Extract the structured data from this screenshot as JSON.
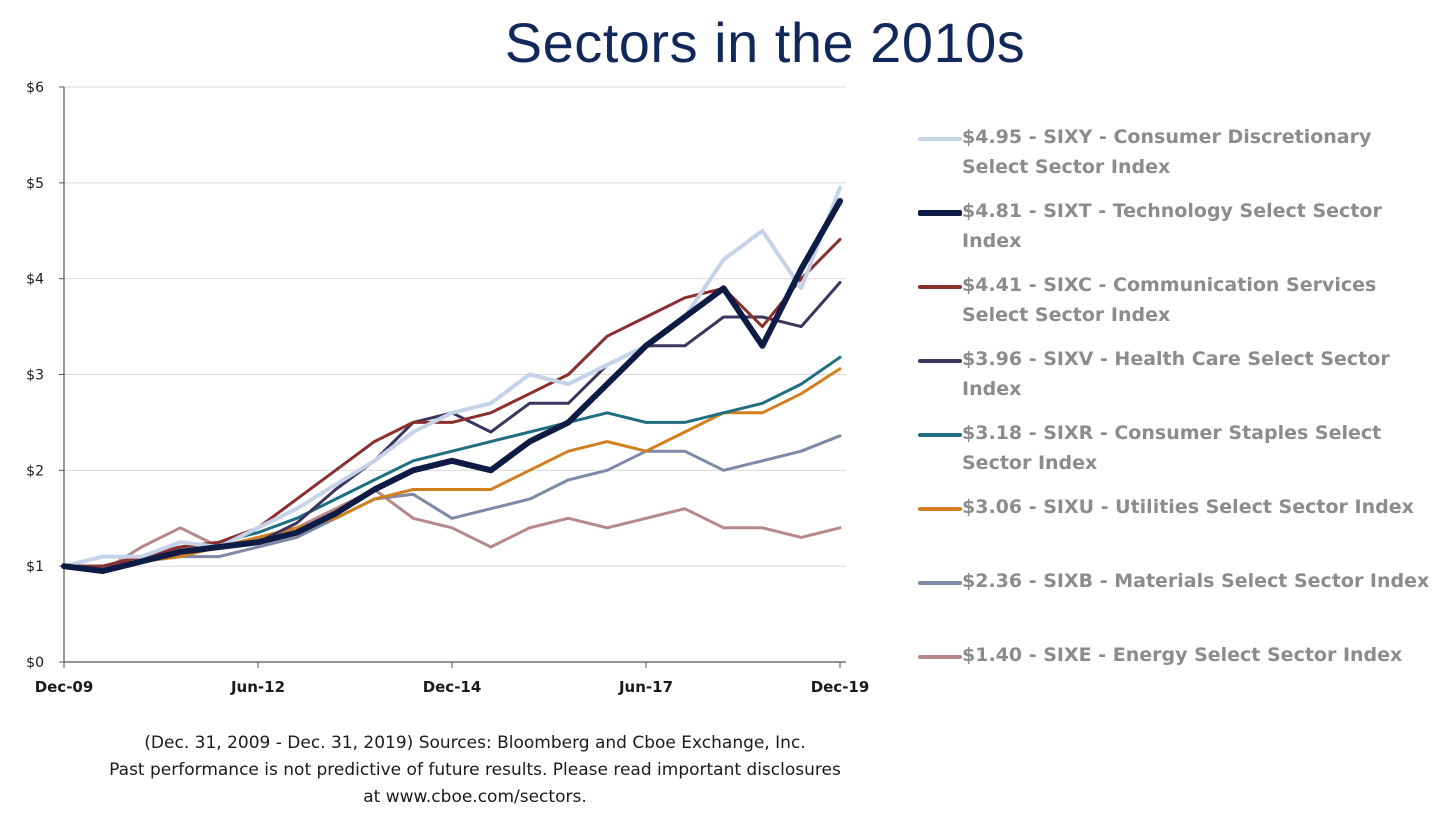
{
  "title": "Sectors in the 2010s",
  "chart_data": {
    "type": "line",
    "title": "Sectors in the 2010s",
    "xlabel": "",
    "ylabel": "",
    "x_range": [
      "Dec-09",
      "Dec-19"
    ],
    "x_ticks": [
      "Dec-09",
      "Jun-12",
      "Dec-14",
      "Jun-17",
      "Dec-19"
    ],
    "ylim": [
      0,
      6
    ],
    "y_ticks": [
      "$0",
      "$1",
      "$2",
      "$3",
      "$4",
      "$5",
      "$6"
    ],
    "grid": "horizontal",
    "legend_position": "right",
    "series": [
      {
        "name": "$4.95 - SIXY - Consumer Discretionary Select Sector Index",
        "color": "#c5d3e9",
        "width": 4,
        "points": [
          [
            0,
            1.0
          ],
          [
            0.5,
            1.1
          ],
          [
            1,
            1.1
          ],
          [
            1.5,
            1.25
          ],
          [
            2,
            1.2
          ],
          [
            2.5,
            1.4
          ],
          [
            3,
            1.6
          ],
          [
            3.5,
            1.85
          ],
          [
            4,
            2.1
          ],
          [
            4.5,
            2.4
          ],
          [
            5,
            2.6
          ],
          [
            5.5,
            2.7
          ],
          [
            6,
            3.0
          ],
          [
            6.5,
            2.9
          ],
          [
            7,
            3.1
          ],
          [
            7.5,
            3.3
          ],
          [
            8,
            3.6
          ],
          [
            8.5,
            4.2
          ],
          [
            9,
            4.5
          ],
          [
            9.5,
            3.9
          ],
          [
            10,
            4.95
          ]
        ]
      },
      {
        "name": "$4.81 - SIXT - Technology Select Sector Index",
        "color": "#0d1b45",
        "width": 6,
        "points": [
          [
            0,
            1.0
          ],
          [
            0.5,
            0.95
          ],
          [
            1,
            1.05
          ],
          [
            1.5,
            1.15
          ],
          [
            2,
            1.2
          ],
          [
            2.5,
            1.25
          ],
          [
            3,
            1.35
          ],
          [
            3.5,
            1.55
          ],
          [
            4,
            1.8
          ],
          [
            4.5,
            2.0
          ],
          [
            5,
            2.1
          ],
          [
            5.5,
            2.0
          ],
          [
            6,
            2.3
          ],
          [
            6.5,
            2.5
          ],
          [
            7,
            2.9
          ],
          [
            7.5,
            3.3
          ],
          [
            8,
            3.6
          ],
          [
            8.5,
            3.9
          ],
          [
            9,
            3.3
          ],
          [
            9.5,
            4.1
          ],
          [
            10,
            4.81
          ]
        ]
      },
      {
        "name": "$4.41 - SIXC - Communication Services Select Sector Index",
        "color": "#8b2e2e",
        "width": 3,
        "points": [
          [
            0,
            1.0
          ],
          [
            0.5,
            1.0
          ],
          [
            1,
            1.1
          ],
          [
            1.5,
            1.2
          ],
          [
            2,
            1.25
          ],
          [
            2.5,
            1.4
          ],
          [
            3,
            1.7
          ],
          [
            3.5,
            2.0
          ],
          [
            4,
            2.3
          ],
          [
            4.5,
            2.5
          ],
          [
            5,
            2.5
          ],
          [
            5.5,
            2.6
          ],
          [
            6,
            2.8
          ],
          [
            6.5,
            3.0
          ],
          [
            7,
            3.4
          ],
          [
            7.5,
            3.6
          ],
          [
            8,
            3.8
          ],
          [
            8.5,
            3.9
          ],
          [
            9,
            3.5
          ],
          [
            9.5,
            4.0
          ],
          [
            10,
            4.41
          ]
        ]
      },
      {
        "name": "$3.96 - SIXV - Health Care Select Sector Index",
        "color": "#3d3560",
        "width": 3,
        "points": [
          [
            0,
            1.0
          ],
          [
            0.5,
            1.0
          ],
          [
            1,
            1.1
          ],
          [
            1.5,
            1.15
          ],
          [
            2,
            1.2
          ],
          [
            2.5,
            1.25
          ],
          [
            3,
            1.45
          ],
          [
            3.5,
            1.8
          ],
          [
            4,
            2.1
          ],
          [
            4.5,
            2.5
          ],
          [
            5,
            2.6
          ],
          [
            5.5,
            2.4
          ],
          [
            6,
            2.7
          ],
          [
            6.5,
            2.7
          ],
          [
            7,
            3.1
          ],
          [
            7.5,
            3.3
          ],
          [
            8,
            3.3
          ],
          [
            8.5,
            3.6
          ],
          [
            9,
            3.6
          ],
          [
            9.5,
            3.5
          ],
          [
            10,
            3.96
          ]
        ]
      },
      {
        "name": "$3.18 - SIXR - Consumer Staples Select Sector Index",
        "color": "#1f6f80",
        "width": 3,
        "points": [
          [
            0,
            1.0
          ],
          [
            0.5,
            1.0
          ],
          [
            1,
            1.1
          ],
          [
            1.5,
            1.2
          ],
          [
            2,
            1.25
          ],
          [
            2.5,
            1.35
          ],
          [
            3,
            1.5
          ],
          [
            3.5,
            1.7
          ],
          [
            4,
            1.9
          ],
          [
            4.5,
            2.1
          ],
          [
            5,
            2.2
          ],
          [
            5.5,
            2.3
          ],
          [
            6,
            2.4
          ],
          [
            6.5,
            2.5
          ],
          [
            7,
            2.6
          ],
          [
            7.5,
            2.5
          ],
          [
            8,
            2.5
          ],
          [
            8.5,
            2.6
          ],
          [
            9,
            2.7
          ],
          [
            9.5,
            2.9
          ],
          [
            10,
            3.18
          ]
        ]
      },
      {
        "name": "$3.06 - SIXU - Utilities Select Sector Index",
        "color": "#d17f1f",
        "width": 3,
        "points": [
          [
            0,
            1.0
          ],
          [
            0.5,
            0.95
          ],
          [
            1,
            1.05
          ],
          [
            1.5,
            1.1
          ],
          [
            2,
            1.2
          ],
          [
            2.5,
            1.3
          ],
          [
            3,
            1.4
          ],
          [
            3.5,
            1.5
          ],
          [
            4,
            1.7
          ],
          [
            4.5,
            1.8
          ],
          [
            5,
            1.8
          ],
          [
            5.5,
            1.8
          ],
          [
            6,
            2.0
          ],
          [
            6.5,
            2.2
          ],
          [
            7,
            2.3
          ],
          [
            7.5,
            2.2
          ],
          [
            8,
            2.4
          ],
          [
            8.5,
            2.6
          ],
          [
            9,
            2.6
          ],
          [
            9.5,
            2.8
          ],
          [
            10,
            3.06
          ]
        ]
      },
      {
        "name": "$2.36 - SIXB - Materials Select Sector Index",
        "color": "#7c8aa8",
        "width": 3,
        "points": [
          [
            0,
            1.0
          ],
          [
            0.5,
            0.95
          ],
          [
            1,
            1.05
          ],
          [
            1.5,
            1.1
          ],
          [
            2,
            1.1
          ],
          [
            2.5,
            1.2
          ],
          [
            3,
            1.3
          ],
          [
            3.5,
            1.5
          ],
          [
            4,
            1.7
          ],
          [
            4.5,
            1.75
          ],
          [
            5,
            1.5
          ],
          [
            5.5,
            1.6
          ],
          [
            6,
            1.7
          ],
          [
            6.5,
            1.9
          ],
          [
            7,
            2.0
          ],
          [
            7.5,
            2.2
          ],
          [
            8,
            2.2
          ],
          [
            8.5,
            2.0
          ],
          [
            9,
            2.1
          ],
          [
            9.5,
            2.2
          ],
          [
            10,
            2.36
          ]
        ]
      },
      {
        "name": "$1.40 - SIXE - Energy Select Sector Index",
        "color": "#b88888",
        "width": 3,
        "points": [
          [
            0,
            1.0
          ],
          [
            0.5,
            0.95
          ],
          [
            1,
            1.2
          ],
          [
            1.5,
            1.4
          ],
          [
            2,
            1.2
          ],
          [
            2.5,
            1.3
          ],
          [
            3,
            1.4
          ],
          [
            3.5,
            1.6
          ],
          [
            4,
            1.8
          ],
          [
            4.5,
            1.5
          ],
          [
            5,
            1.4
          ],
          [
            5.5,
            1.2
          ],
          [
            6,
            1.4
          ],
          [
            6.5,
            1.5
          ],
          [
            7,
            1.4
          ],
          [
            7.5,
            1.5
          ],
          [
            8,
            1.6
          ],
          [
            8.5,
            1.4
          ],
          [
            9,
            1.4
          ],
          [
            9.5,
            1.3
          ],
          [
            10,
            1.4
          ]
        ]
      }
    ]
  },
  "legend": [
    {
      "label": "$4.95 - SIXY - Consumer Discretionary Select Sector Index",
      "color": "#c5d3e9"
    },
    {
      "label": "$4.81 - SIXT - Technology Select Sector Index",
      "color": "#0d1b45"
    },
    {
      "label": "$4.41 - SIXC - Communication Services Select Sector Index",
      "color": "#8b2e2e"
    },
    {
      "label": "$3.96 - SIXV - Health Care Select Sector Index",
      "color": "#3d3560"
    },
    {
      "label": "$3.18 - SIXR - Consumer Staples Select Sector Index",
      "color": "#1f6f80"
    },
    {
      "label": "$3.06 - SIXU - Utilities Select Sector Index",
      "color": "#d17f1f"
    },
    {
      "label": "$2.36 - SIXB - Materials Select Sector Index",
      "color": "#7c8aa8"
    },
    {
      "label": "$1.40 - SIXE - Energy Select Sector Index",
      "color": "#b88888"
    }
  ],
  "footnote": {
    "line1": "(Dec. 31, 2009 - Dec. 31, 2019)  Sources: Bloomberg and Cboe Exchange, Inc.",
    "line2": "Past performance is not predictive of future results. Please read important disclosures",
    "line3": "at www.cboe.com/sectors."
  }
}
